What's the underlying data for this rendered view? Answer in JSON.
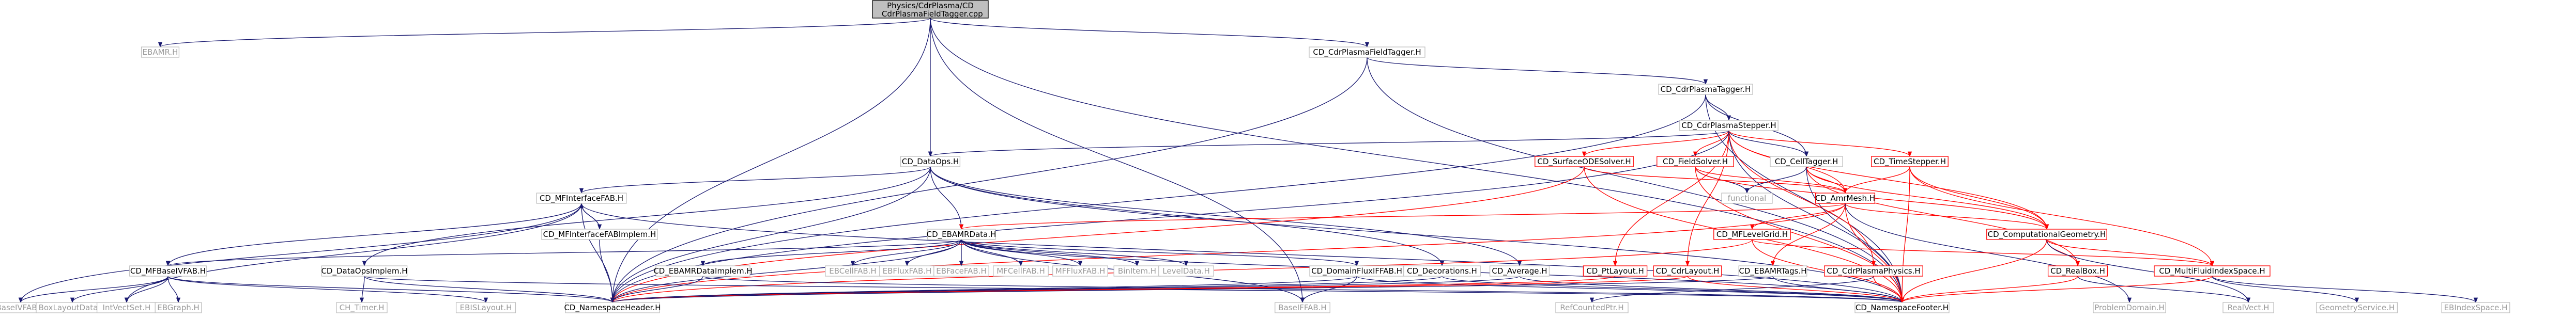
{
  "diagram": {
    "title": "Dependency graph of Physics/CdrPlasma/CD_CdrPlasmaFieldTagger.cpp",
    "root_label_lines": [
      "Physics/CdrPlasma/CD",
      "_CdrPlasmaFieldTagger.cpp"
    ],
    "nodes": [
      {
        "id": "root",
        "label": "Physics/CdrPlasma/CD\n_CdrPlasmaFieldTagger.cpp",
        "kind": "root"
      },
      {
        "id": "bamrh",
        "label": "EBAMR.H",
        "kind": "grey"
      },
      {
        "id": "fieldtaggerh",
        "label": "CD_CdrPlasmaFieldTagger.H",
        "kind": "normal"
      },
      {
        "id": "taggerh",
        "label": "CD_CdrPlasmaTagger.H",
        "kind": "normal"
      },
      {
        "id": "stepperh",
        "label": "CD_CdrPlasmaStepper.H",
        "kind": "normal"
      },
      {
        "id": "dataops",
        "label": "CD_DataOps.H",
        "kind": "normal"
      },
      {
        "id": "surfaceode",
        "label": "CD_SurfaceODESolver.H",
        "kind": "bad"
      },
      {
        "id": "fieldsolver",
        "label": "CD_FieldSolver.H",
        "kind": "bad"
      },
      {
        "id": "celltagger",
        "label": "CD_CellTagger.H",
        "kind": "normal"
      },
      {
        "id": "timestepper",
        "label": "CD_TimeStepper.H",
        "kind": "bad"
      },
      {
        "id": "functional",
        "label": "functional",
        "kind": "grey"
      },
      {
        "id": "amrmesh",
        "label": "CD_AmrMesh.H",
        "kind": "bad"
      },
      {
        "id": "mfinterface",
        "label": "CD_MFInterfaceFAB.H",
        "kind": "normal"
      },
      {
        "id": "mfinterfaceimpl",
        "label": "CD_MFInterfaceFABImplem.H",
        "kind": "normal"
      },
      {
        "id": "ebamrdata",
        "label": "CD_EBAMRData.H",
        "kind": "normal"
      },
      {
        "id": "mflevelgrid",
        "label": "CD_MFLevelGrid.H",
        "kind": "bad"
      },
      {
        "id": "compgeom",
        "label": "CD_ComputationalGeometry.H",
        "kind": "bad"
      },
      {
        "id": "mfbaseivfab",
        "label": "CD_MFBaseIVFAB.H",
        "kind": "normal"
      },
      {
        "id": "dataopsimpl",
        "label": "CD_DataOpsImplem.H",
        "kind": "normal"
      },
      {
        "id": "ebamrdataimpl",
        "label": "CD_EBAMRDataImplem.H",
        "kind": "normal"
      },
      {
        "id": "ebcellfab",
        "label": "EBCellFAB.H",
        "kind": "grey"
      },
      {
        "id": "ebfluxfab",
        "label": "EBFluxFAB.H",
        "kind": "grey"
      },
      {
        "id": "ebfacefab",
        "label": "EBFaceFAB.H",
        "kind": "grey"
      },
      {
        "id": "mfcellfab",
        "label": "MFCellFAB.H",
        "kind": "grey"
      },
      {
        "id": "mffluxfab",
        "label": "MFFluxFAB.H",
        "kind": "grey"
      },
      {
        "id": "bintem",
        "label": "BinItem.H",
        "kind": "grey"
      },
      {
        "id": "leveldata",
        "label": "LevelData.H",
        "kind": "grey"
      },
      {
        "id": "domainfluxifab",
        "label": "CD_DomainFluxIFFAB.H",
        "kind": "normal"
      },
      {
        "id": "decorations",
        "label": "CD_Decorations.H",
        "kind": "normal"
      },
      {
        "id": "average",
        "label": "CD_Average.H",
        "kind": "normal"
      },
      {
        "id": "ptlayout",
        "label": "CD_PtLayout.H",
        "kind": "bad"
      },
      {
        "id": "cdrlayout",
        "label": "CD_CdrLayout.H",
        "kind": "bad"
      },
      {
        "id": "ebamrtags",
        "label": "CD_EBAMRTags.H",
        "kind": "normal"
      },
      {
        "id": "cdrphysics",
        "label": "CD_CdrPlasmaPhysics.H",
        "kind": "bad"
      },
      {
        "id": "realbox",
        "label": "CD_RealBox.H",
        "kind": "bad"
      },
      {
        "id": "multifluidindex",
        "label": "CD_MultiFluidIndexSpace.H",
        "kind": "bad"
      },
      {
        "id": "baseivfab",
        "label": "BaseIVFAB.H",
        "kind": "grey"
      },
      {
        "id": "boxlayoutdata",
        "label": "BoxLayoutData.H",
        "kind": "grey"
      },
      {
        "id": "intvectset",
        "label": "IntVectSet.H",
        "kind": "grey"
      },
      {
        "id": "ebgraph",
        "label": "EBGraph.H",
        "kind": "grey"
      },
      {
        "id": "chtimer",
        "label": "CH_Timer.H",
        "kind": "grey"
      },
      {
        "id": "ebislayout",
        "label": "EBISLayout.H",
        "kind": "grey"
      },
      {
        "id": "namespaceheader",
        "label": "CD_NamespaceHeader.H",
        "kind": "normal"
      },
      {
        "id": "basefab",
        "label": "BaseIFFAB.H",
        "kind": "grey"
      },
      {
        "id": "refcountedptr",
        "label": "RefCountedPtr.H",
        "kind": "grey"
      },
      {
        "id": "namespacefooter",
        "label": "CD_NamespaceFooter.H",
        "kind": "normal"
      },
      {
        "id": "problemdomain",
        "label": "ProblemDomain.H",
        "kind": "grey"
      },
      {
        "id": "realvect",
        "label": "RealVect.H",
        "kind": "grey"
      },
      {
        "id": "geometryservice",
        "label": "GeometryService.H",
        "kind": "grey"
      },
      {
        "id": "ebindexspace",
        "label": "EBIndexSpace.H",
        "kind": "grey"
      }
    ],
    "edges": [
      [
        "root",
        "bamrh"
      ],
      [
        "root",
        "fieldtaggerh"
      ],
      [
        "root",
        "dataops"
      ],
      [
        "root",
        "namespaceheader"
      ],
      [
        "root",
        "namespacefooter"
      ],
      [
        "root",
        "basefab"
      ],
      [
        "fieldtaggerh",
        "taggerh"
      ],
      [
        "fieldtaggerh",
        "namespaceheader"
      ],
      [
        "fieldtaggerh",
        "namespacefooter"
      ],
      [
        "taggerh",
        "stepperh"
      ],
      [
        "taggerh",
        "celltagger"
      ],
      [
        "taggerh",
        "namespaceheader"
      ],
      [
        "taggerh",
        "namespacefooter"
      ],
      [
        "stepperh",
        "dataops"
      ],
      [
        "stepperh",
        "surfaceode"
      ],
      [
        "stepperh",
        "fieldsolver"
      ],
      [
        "stepperh",
        "celltagger"
      ],
      [
        "stepperh",
        "timestepper"
      ],
      [
        "stepperh",
        "amrmesh"
      ],
      [
        "stepperh",
        "compgeom"
      ],
      [
        "stepperh",
        "ptlayout"
      ],
      [
        "stepperh",
        "cdrlayout"
      ],
      [
        "stepperh",
        "cdrphysics"
      ],
      [
        "stepperh",
        "namespaceheader"
      ],
      [
        "stepperh",
        "namespacefooter"
      ],
      [
        "dataops",
        "mfinterface"
      ],
      [
        "dataops",
        "ebamrdata"
      ],
      [
        "dataops",
        "dataopsimpl"
      ],
      [
        "dataops",
        "average"
      ],
      [
        "dataops",
        "decorations"
      ],
      [
        "dataops",
        "namespaceheader"
      ],
      [
        "dataops",
        "namespacefooter"
      ],
      [
        "surfaceode",
        "amrmesh"
      ],
      [
        "surfaceode",
        "namespaceheader"
      ],
      [
        "surfaceode",
        "namespacefooter"
      ],
      [
        "fieldsolver",
        "functional"
      ],
      [
        "fieldsolver",
        "amrmesh"
      ],
      [
        "fieldsolver",
        "compgeom"
      ],
      [
        "fieldsolver",
        "namespacefooter"
      ],
      [
        "celltagger",
        "functional"
      ],
      [
        "celltagger",
        "amrmesh"
      ],
      [
        "celltagger",
        "realbox"
      ],
      [
        "celltagger",
        "compgeom"
      ],
      [
        "celltagger",
        "namespacefooter"
      ],
      [
        "timestepper",
        "amrmesh"
      ],
      [
        "timestepper",
        "compgeom"
      ],
      [
        "timestepper",
        "multifluidindex"
      ],
      [
        "timestepper",
        "namespacefooter"
      ],
      [
        "amrmesh",
        "ebamrdata"
      ],
      [
        "amrmesh",
        "mflevelgrid"
      ],
      [
        "amrmesh",
        "compgeom"
      ],
      [
        "amrmesh",
        "ebamrtags"
      ],
      [
        "amrmesh",
        "namespaceheader"
      ],
      [
        "amrmesh",
        "namespacefooter"
      ],
      [
        "amrmesh",
        "problemdomain"
      ],
      [
        "mfinterface",
        "mfinterfaceimpl"
      ],
      [
        "mfinterface",
        "mfbaseivfab"
      ],
      [
        "mfinterface",
        "baseivfab"
      ],
      [
        "mfinterface",
        "namespaceheader"
      ],
      [
        "mfinterface",
        "namespacefooter"
      ],
      [
        "mfinterface",
        "intvectset"
      ],
      [
        "mfinterfaceimpl",
        "mfinterface"
      ],
      [
        "mfinterfaceimpl",
        "namespaceheader"
      ],
      [
        "ebamrdata",
        "ebamrdataimpl"
      ],
      [
        "ebamrdata",
        "ebcellfab"
      ],
      [
        "ebamrdata",
        "ebfluxfab"
      ],
      [
        "ebamrdata",
        "ebfacefab"
      ],
      [
        "ebamrdata",
        "mfcellfab"
      ],
      [
        "ebamrdata",
        "mffluxfab"
      ],
      [
        "ebamrdata",
        "bintem"
      ],
      [
        "ebamrdata",
        "leveldata"
      ],
      [
        "ebamrdata",
        "domainfluxifab"
      ],
      [
        "ebamrdata",
        "mfbaseivfab"
      ],
      [
        "ebamrdata",
        "namespaceheader"
      ],
      [
        "ebamrdata",
        "namespacefooter"
      ],
      [
        "ebamrdata",
        "basefab"
      ],
      [
        "mflevelgrid",
        "multifluidindex"
      ],
      [
        "mflevelgrid",
        "namespaceheader"
      ],
      [
        "mflevelgrid",
        "namespacefooter"
      ],
      [
        "compgeom",
        "realbox"
      ],
      [
        "compgeom",
        "multifluidindex"
      ],
      [
        "compgeom",
        "namespacefooter"
      ],
      [
        "compgeom",
        "realvect"
      ],
      [
        "mfbaseivfab",
        "baseivfab"
      ],
      [
        "mfbaseivfab",
        "boxlayoutdata"
      ],
      [
        "mfbaseivfab",
        "intvectset"
      ],
      [
        "mfbaseivfab",
        "ebgraph"
      ],
      [
        "mfbaseivfab",
        "ebislayout"
      ],
      [
        "mfbaseivfab",
        "namespaceheader"
      ],
      [
        "dataopsimpl",
        "chtimer"
      ],
      [
        "dataopsimpl",
        "namespaceheader"
      ],
      [
        "dataopsimpl",
        "namespacefooter"
      ],
      [
        "ebamrdataimpl",
        "namespaceheader"
      ],
      [
        "ebamrdataimpl",
        "namespacefooter"
      ],
      [
        "domainfluxifab",
        "namespaceheader"
      ],
      [
        "domainfluxifab",
        "namespacefooter"
      ],
      [
        "domainfluxifab",
        "basefab"
      ],
      [
        "decorations",
        "namespaceheader"
      ],
      [
        "decorations",
        "namespacefooter"
      ],
      [
        "average",
        "namespaceheader"
      ],
      [
        "average",
        "namespacefooter"
      ],
      [
        "ptlayout",
        "namespaceheader"
      ],
      [
        "cdrlayout",
        "namespaceheader"
      ],
      [
        "cdrlayout",
        "namespacefooter"
      ],
      [
        "ebamrtags",
        "namespaceheader"
      ],
      [
        "ebamrtags",
        "namespacefooter"
      ],
      [
        "cdrphysics",
        "namespacefooter"
      ],
      [
        "cdrphysics",
        "refcountedptr"
      ],
      [
        "realbox",
        "namespacefooter"
      ],
      [
        "realbox",
        "realvect"
      ],
      [
        "multifluidindex",
        "namespacefooter"
      ],
      [
        "multifluidindex",
        "geometryservice"
      ],
      [
        "multifluidindex",
        "ebindexspace"
      ]
    ]
  }
}
